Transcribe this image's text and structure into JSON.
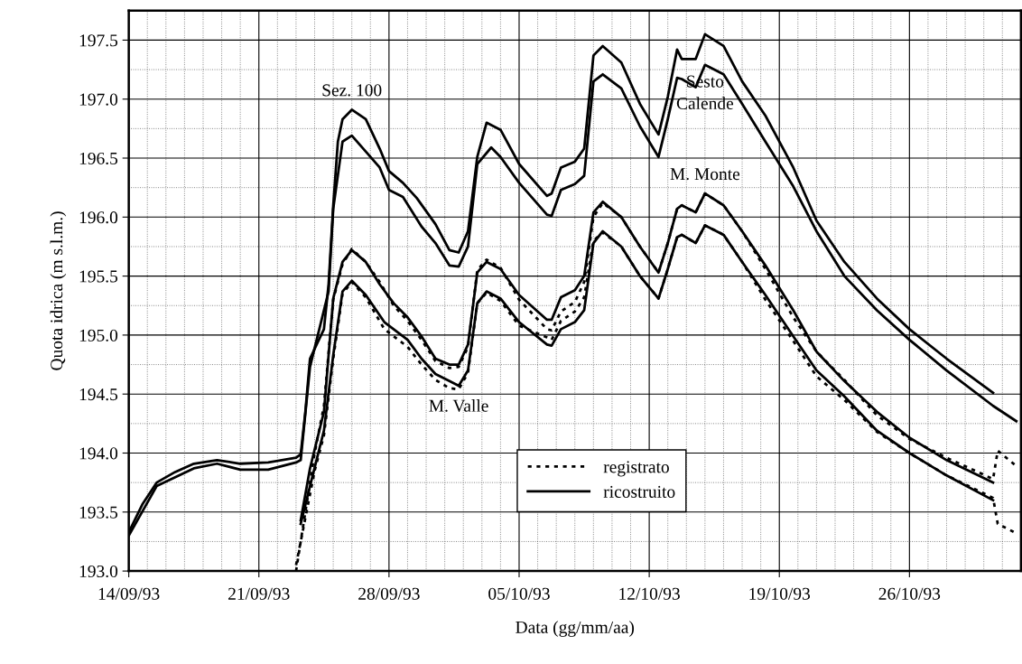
{
  "chart_data": {
    "type": "line",
    "xlabel": "Data (gg/mm/aa)",
    "ylabel": "Quota idrica (m s.l.m.)",
    "xlim": [
      "1993-09-14",
      "1993-11-01"
    ],
    "xticks": [
      {
        "value": "1993-09-14",
        "label": "14/09/93"
      },
      {
        "value": "1993-09-15",
        "label": null
      },
      {
        "value": "1993-09-16",
        "label": null
      },
      {
        "value": "1993-09-17",
        "label": null
      },
      {
        "value": "1993-09-18",
        "label": null
      },
      {
        "value": "1993-09-19",
        "label": null
      },
      {
        "value": "1993-09-20",
        "label": null
      },
      {
        "value": "1993-09-21",
        "label": "21/09/93"
      },
      {
        "value": "1993-09-22",
        "label": null
      },
      {
        "value": "1993-09-23",
        "label": null
      },
      {
        "value": "1993-09-24",
        "label": null
      },
      {
        "value": "1993-09-25",
        "label": null
      },
      {
        "value": "1993-09-26",
        "label": null
      },
      {
        "value": "1993-09-27",
        "label": null
      },
      {
        "value": "1993-09-28",
        "label": "28/09/93"
      },
      {
        "value": "1993-09-29",
        "label": null
      },
      {
        "value": "1993-09-30",
        "label": null
      },
      {
        "value": "1993-10-01",
        "label": null
      },
      {
        "value": "1993-10-02",
        "label": null
      },
      {
        "value": "1993-10-03",
        "label": null
      },
      {
        "value": "1993-10-04",
        "label": null
      },
      {
        "value": "1993-10-05",
        "label": "05/10/93"
      },
      {
        "value": "1993-10-06",
        "label": null
      },
      {
        "value": "1993-10-07",
        "label": null
      },
      {
        "value": "1993-10-08",
        "label": null
      },
      {
        "value": "1993-10-09",
        "label": null
      },
      {
        "value": "1993-10-10",
        "label": null
      },
      {
        "value": "1993-10-11",
        "label": null
      },
      {
        "value": "1993-10-12",
        "label": "12/10/93"
      },
      {
        "value": "1993-10-13",
        "label": null
      },
      {
        "value": "1993-10-14",
        "label": null
      },
      {
        "value": "1993-10-15",
        "label": null
      },
      {
        "value": "1993-10-16",
        "label": null
      },
      {
        "value": "1993-10-17",
        "label": null
      },
      {
        "value": "1993-10-18",
        "label": null
      },
      {
        "value": "1993-10-19",
        "label": "19/10/93"
      },
      {
        "value": "1993-10-20",
        "label": null
      },
      {
        "value": "1993-10-21",
        "label": null
      },
      {
        "value": "1993-10-22",
        "label": null
      },
      {
        "value": "1993-10-23",
        "label": null
      },
      {
        "value": "1993-10-24",
        "label": null
      },
      {
        "value": "1993-10-25",
        "label": null
      },
      {
        "value": "1993-10-26",
        "label": "26/10/93"
      },
      {
        "value": "1993-10-27",
        "label": null
      },
      {
        "value": "1993-10-28",
        "label": null
      },
      {
        "value": "1993-10-29",
        "label": null
      },
      {
        "value": "1993-10-30",
        "label": null
      },
      {
        "value": "1993-10-31",
        "label": null
      }
    ],
    "ylim": [
      193,
      197.75
    ],
    "yticks": [
      {
        "value": 193,
        "label": "193.0"
      },
      {
        "value": 193.25,
        "label": null
      },
      {
        "value": 193.5,
        "label": "193.5"
      },
      {
        "value": 193.75,
        "label": null
      },
      {
        "value": 194,
        "label": "194.0"
      },
      {
        "value": 194.25,
        "label": null
      },
      {
        "value": 194.5,
        "label": "194.5"
      },
      {
        "value": 194.75,
        "label": null
      },
      {
        "value": 195,
        "label": "195.0"
      },
      {
        "value": 195.25,
        "label": null
      },
      {
        "value": 195.5,
        "label": "195.5"
      },
      {
        "value": 195.75,
        "label": null
      },
      {
        "value": 196,
        "label": "196.0"
      },
      {
        "value": 196.25,
        "label": null
      },
      {
        "value": 196.5,
        "label": "196.5"
      },
      {
        "value": 196.75,
        "label": null
      },
      {
        "value": 197,
        "label": "197.0"
      },
      {
        "value": 197.25,
        "label": null
      },
      {
        "value": 197.5,
        "label": "197.5"
      }
    ],
    "grid": true,
    "legend": "bottom",
    "marker": "none",
    "annotations": [
      {
        "text": "Sez. 100",
        "x": "1993-09-26T00:00",
        "y": 196.91
      },
      {
        "text": "Sesto\nCalende",
        "x": "1993-10-15T00:00",
        "y": 197.29
      },
      {
        "text": "M. Monte",
        "x": "1993-10-15T00:00",
        "y": 196.2
      },
      {
        "text": "M. Valle",
        "x": "1993-10-01T18:00",
        "y": 194.54
      }
    ],
    "series": [
      {
        "name": "registrato",
        "color": "#000000",
        "line_style": "dotted",
        "x": [
          "1993-09-23T00:00",
          "1993-09-23T12:00",
          "1993-09-24T00:00",
          "1993-09-24T12:00",
          "1993-09-24T18:00",
          "1993-09-25T00:00",
          "1993-09-25T12:00",
          "1993-09-26T00:00",
          "1993-09-26T18:00",
          "1993-09-27T12:00",
          "1993-09-28T06:00",
          "1993-09-29T00:00",
          "1993-09-29T18:00",
          "1993-09-30T12:00",
          "1993-10-01T06:00",
          "1993-10-01T18:00",
          "1993-10-02T06:00",
          "1993-10-02T18:00",
          "1993-10-03T06:00",
          "1993-10-04T00:00",
          "1993-10-05T00:00",
          "1993-10-06T12:00",
          "1993-10-06T18:00",
          "1993-10-07T06:00",
          "1993-10-08T00:00",
          "1993-10-08T12:00",
          "1993-10-09T00:00",
          "1993-10-09T12:00",
          "1993-10-10T12:00",
          "1993-10-11T12:00",
          "1993-10-12T12:00",
          "1993-10-13T00:00",
          "1993-10-13T12:00",
          "1993-10-13T18:00",
          "1993-10-14T12:00",
          "1993-10-15T00:00",
          "1993-10-16T00:00",
          "1993-10-17T00:00",
          "1993-10-18T06:00",
          "1993-10-19T18:00",
          "1993-10-21T00:00",
          "1993-10-22T12:00",
          "1993-10-24T06:00",
          "1993-10-26T00:00",
          "1993-10-28T00:00",
          "1993-10-30T12:00",
          "1993-10-30T18:00",
          "1993-10-31T18:00"
        ],
        "values": [
          193.0,
          193.5,
          194.0,
          194.4,
          194.85,
          195.3,
          195.6,
          195.73,
          195.62,
          195.45,
          195.25,
          195.12,
          194.96,
          194.78,
          194.72,
          194.73,
          194.9,
          195.55,
          195.64,
          195.57,
          195.3,
          195.05,
          195.04,
          195.2,
          195.28,
          195.45,
          196.0,
          196.12,
          196.0,
          195.75,
          195.53,
          195.78,
          196.07,
          196.1,
          196.04,
          196.2,
          196.1,
          195.88,
          195.56,
          195.15,
          194.86,
          194.62,
          194.32,
          194.12,
          193.96,
          193.78,
          194.02,
          193.89
        ]
      },
      {
        "color": "#000000",
        "line_style": "dotted",
        "x": [
          "1993-09-23T00:00",
          "1993-09-23T12:00",
          "1993-09-24T00:00",
          "1993-09-24T12:00",
          "1993-09-25T00:00",
          "1993-09-25T12:00",
          "1993-09-26T00:00",
          "1993-09-26T18:00",
          "1993-09-27T18:00",
          "1993-09-29T00:00",
          "1993-09-29T18:00",
          "1993-09-30T12:00",
          "1993-10-01T06:00",
          "1993-10-01T18:00",
          "1993-10-02T06:00",
          "1993-10-02T18:00",
          "1993-10-03T06:00",
          "1993-10-04T00:00",
          "1993-10-05T00:00",
          "1993-10-06T12:00",
          "1993-10-06T18:00",
          "1993-10-07T06:00",
          "1993-10-08T00:00",
          "1993-10-08T12:00",
          "1993-10-09T00:00",
          "1993-10-09T12:00",
          "1993-10-10T12:00",
          "1993-10-11T12:00",
          "1993-10-12T12:00",
          "1993-10-13T00:00",
          "1993-10-13T12:00",
          "1993-10-13T18:00",
          "1993-10-14T12:00",
          "1993-10-15T00:00",
          "1993-10-16T00:00",
          "1993-10-17T00:00",
          "1993-10-18T06:00",
          "1993-10-19T18:00",
          "1993-10-21T00:00",
          "1993-10-22T12:00",
          "1993-10-24T06:00",
          "1993-10-26T00:00",
          "1993-10-28T00:00",
          "1993-10-30T12:00",
          "1993-10-30T18:00",
          "1993-10-31T18:00"
        ],
        "values": [
          193.05,
          193.45,
          193.85,
          194.15,
          194.8,
          195.35,
          195.45,
          195.32,
          195.05,
          194.9,
          194.75,
          194.62,
          194.55,
          194.54,
          194.68,
          195.27,
          195.36,
          195.29,
          195.08,
          194.98,
          194.96,
          195.12,
          195.2,
          195.32,
          195.8,
          195.87,
          195.75,
          195.5,
          195.31,
          195.56,
          195.83,
          195.85,
          195.78,
          195.93,
          195.85,
          195.62,
          195.3,
          194.95,
          194.65,
          194.45,
          194.18,
          194.0,
          193.81,
          193.62,
          193.4,
          193.32
        ]
      },
      {
        "name": "ricostruito",
        "color": "#000000",
        "line_style": "solid",
        "x": [
          "1993-09-14T00:00",
          "1993-09-14T18:00",
          "1993-09-15T12:00",
          "1993-09-16T12:00",
          "1993-09-17T12:00",
          "1993-09-18T18:00",
          "1993-09-20T00:00",
          "1993-09-21T12:00",
          "1993-09-23T00:00",
          "1993-09-23T06:00",
          "1993-09-23T12:00",
          "1993-09-23T18:00",
          "1993-09-24T12:00",
          "1993-09-24T18:00",
          "1993-09-25T00:00",
          "1993-09-25T06:00",
          "1993-09-25T12:00",
          "1993-09-26T00:00",
          "1993-09-26T18:00",
          "1993-09-27T12:00",
          "1993-09-28T00:00",
          "1993-09-28T18:00",
          "1993-09-29T12:00",
          "1993-09-30T12:00",
          "1993-10-01T06:00",
          "1993-10-01T18:00",
          "1993-10-02T06:00",
          "1993-10-02T18:00",
          "1993-10-03T06:00",
          "1993-10-04T00:00",
          "1993-10-05T00:00",
          "1993-10-06T12:00",
          "1993-10-06T18:00",
          "1993-10-07T06:00",
          "1993-10-08T00:00",
          "1993-10-08T12:00",
          "1993-10-09T00:00",
          "1993-10-09T12:00",
          "1993-10-10T12:00",
          "1993-10-11T12:00",
          "1993-10-12T12:00",
          "1993-10-13T00:00",
          "1993-10-13T12:00",
          "1993-10-13T18:00",
          "1993-10-14T12:00",
          "1993-10-15T00:00",
          "1993-10-16T00:00",
          "1993-10-17T00:00",
          "1993-10-18T06:00",
          "1993-10-19T18:00",
          "1993-10-21T00:00",
          "1993-10-22T12:00",
          "1993-10-24T06:00",
          "1993-10-26T00:00",
          "1993-10-28T00:00",
          "1993-10-30T12:00"
        ],
        "values": [
          193.33,
          193.57,
          193.75,
          193.84,
          193.91,
          193.94,
          193.91,
          193.92,
          193.96,
          193.99,
          194.35,
          194.8,
          195.05,
          195.43,
          196.1,
          196.64,
          196.83,
          196.91,
          196.83,
          196.58,
          196.39,
          196.29,
          196.16,
          195.94,
          195.72,
          195.7,
          195.88,
          196.51,
          196.8,
          196.74,
          196.45,
          196.18,
          196.2,
          196.42,
          196.47,
          196.58,
          197.37,
          197.45,
          197.31,
          196.96,
          196.7,
          197.02,
          197.42,
          197.34,
          197.34,
          197.55,
          197.45,
          197.15,
          196.86,
          196.42,
          195.97,
          195.62,
          195.31,
          195.05,
          194.8,
          194.51
        ]
      },
      {
        "color": "#000000",
        "line_style": "solid",
        "x": [
          "1993-09-14T00:00",
          "1993-09-15T12:00",
          "1993-09-17T12:00",
          "1993-09-18T18:00",
          "1993-09-20T00:00",
          "1993-09-21T12:00",
          "1993-09-23T00:00",
          "1993-09-23T06:00",
          "1993-09-23T18:00",
          "1993-09-24T18:00",
          "1993-09-25T00:00",
          "1993-09-25T12:00",
          "1993-09-26T00:00",
          "1993-09-27T12:00",
          "1993-09-28T00:00",
          "1993-09-28T18:00",
          "1993-09-29T18:00",
          "1993-09-30T12:00",
          "1993-10-01T06:00",
          "1993-10-01T18:00",
          "1993-10-02T06:00",
          "1993-10-02T18:00",
          "1993-10-03T12:00",
          "1993-10-04T00:00",
          "1993-10-05T00:00",
          "1993-10-06T12:00",
          "1993-10-06T18:00",
          "1993-10-07T06:00",
          "1993-10-08T00:00",
          "1993-10-08T12:00",
          "1993-10-09T00:00",
          "1993-10-09T12:00",
          "1993-10-10T12:00",
          "1993-10-11T12:00",
          "1993-10-12T12:00",
          "1993-10-13T00:00",
          "1993-10-13T12:00",
          "1993-10-13T18:00",
          "1993-10-14T12:00",
          "1993-10-15T00:00",
          "1993-10-16T00:00",
          "1993-10-17T00:00",
          "1993-10-18T06:00",
          "1993-10-19T18:00",
          "1993-10-21T00:00",
          "1993-10-22T12:00",
          "1993-10-24T06:00",
          "1993-10-26T00:00",
          "1993-10-28T00:00",
          "1993-10-30T12:00",
          "1993-10-31T18:00"
        ],
        "values": [
          193.3,
          193.72,
          193.87,
          193.91,
          193.86,
          193.86,
          193.92,
          193.94,
          194.73,
          195.37,
          196.07,
          196.64,
          196.69,
          196.42,
          196.23,
          196.17,
          195.92,
          195.78,
          195.59,
          195.58,
          195.75,
          196.45,
          196.59,
          196.51,
          196.29,
          196.02,
          196.01,
          196.23,
          196.28,
          196.35,
          197.15,
          197.21,
          197.09,
          196.77,
          196.51,
          196.83,
          197.18,
          197.17,
          197.1,
          197.29,
          197.21,
          196.96,
          196.64,
          196.26,
          195.88,
          195.5,
          195.21,
          194.96,
          194.7,
          194.4,
          194.27
        ]
      },
      {
        "color": "#000000",
        "line_style": "solid",
        "x": [
          "1993-09-23T06:00",
          "1993-09-23T18:00",
          "1993-09-24T12:00",
          "1993-09-24T18:00",
          "1993-09-25T00:00",
          "1993-09-25T12:00",
          "1993-09-26T00:00",
          "1993-09-26T18:00",
          "1993-09-27T12:00",
          "1993-09-28T06:00",
          "1993-09-29T00:00",
          "1993-09-29T18:00",
          "1993-09-30T12:00",
          "1993-10-01T06:00",
          "1993-10-01T18:00",
          "1993-10-02T06:00",
          "1993-10-02T18:00",
          "1993-10-03T06:00",
          "1993-10-04T00:00",
          "1993-10-05T00:00",
          "1993-10-06T12:00",
          "1993-10-06T18:00",
          "1993-10-07T06:00",
          "1993-10-08T00:00",
          "1993-10-08T12:00",
          "1993-10-09T00:00",
          "1993-10-09T12:00",
          "1993-10-10T12:00",
          "1993-10-11T12:00",
          "1993-10-12T12:00",
          "1993-10-13T00:00",
          "1993-10-13T12:00",
          "1993-10-13T18:00",
          "1993-10-14T12:00",
          "1993-10-15T00:00",
          "1993-10-16T00:00",
          "1993-10-17T00:00",
          "1993-10-18T06:00",
          "1993-10-19T18:00",
          "1993-10-21T00:00",
          "1993-10-22T12:00",
          "1993-10-24T06:00",
          "1993-10-26T00:00",
          "1993-10-28T00:00",
          "1993-10-30T12:00"
        ],
        "values": [
          193.43,
          193.87,
          194.35,
          194.83,
          195.31,
          195.62,
          195.72,
          195.62,
          195.43,
          195.27,
          195.15,
          194.99,
          194.8,
          194.75,
          194.75,
          194.92,
          195.53,
          195.62,
          195.56,
          195.34,
          195.13,
          195.13,
          195.32,
          195.38,
          195.5,
          196.04,
          196.13,
          196.0,
          195.75,
          195.53,
          195.78,
          196.07,
          196.1,
          196.04,
          196.2,
          196.1,
          195.88,
          195.59,
          195.21,
          194.86,
          194.61,
          194.35,
          194.13,
          193.94,
          193.75
        ]
      },
      {
        "color": "#000000",
        "line_style": "solid",
        "x": [
          "1993-09-23T06:00",
          "1993-09-23T18:00",
          "1993-09-24T12:00",
          "1993-09-25T00:00",
          "1993-09-25T12:00",
          "1993-09-26T00:00",
          "1993-09-26T18:00",
          "1993-09-27T18:00",
          "1993-09-29T00:00",
          "1993-09-29T18:00",
          "1993-09-30T12:00",
          "1993-10-01T06:00",
          "1993-10-01T18:00",
          "1993-10-02T06:00",
          "1993-10-02T18:00",
          "1993-10-03T06:00",
          "1993-10-04T00:00",
          "1993-10-05T00:00",
          "1993-10-06T12:00",
          "1993-10-06T18:00",
          "1993-10-07T06:00",
          "1993-10-08T00:00",
          "1993-10-08T12:00",
          "1993-10-09T00:00",
          "1993-10-09T12:00",
          "1993-10-10T12:00",
          "1993-10-11T12:00",
          "1993-10-12T12:00",
          "1993-10-13T00:00",
          "1993-10-13T12:00",
          "1993-10-13T18:00",
          "1993-10-14T12:00",
          "1993-10-15T00:00",
          "1993-10-16T00:00",
          "1993-10-17T00:00",
          "1993-10-18T06:00",
          "1993-10-19T18:00",
          "1993-10-21T00:00",
          "1993-10-22T12:00",
          "1993-10-24T06:00",
          "1993-10-26T00:00",
          "1993-10-28T00:00",
          "1993-10-30T12:00"
        ],
        "values": [
          193.4,
          193.72,
          194.19,
          194.83,
          195.37,
          195.46,
          195.34,
          195.11,
          194.96,
          194.8,
          194.67,
          194.61,
          194.57,
          194.7,
          195.27,
          195.37,
          195.31,
          195.11,
          194.92,
          194.91,
          195.05,
          195.11,
          195.21,
          195.78,
          195.88,
          195.75,
          195.5,
          195.31,
          195.56,
          195.83,
          195.85,
          195.78,
          195.93,
          195.85,
          195.62,
          195.34,
          194.99,
          194.7,
          194.48,
          194.19,
          194.0,
          193.81,
          193.6
        ]
      }
    ]
  }
}
